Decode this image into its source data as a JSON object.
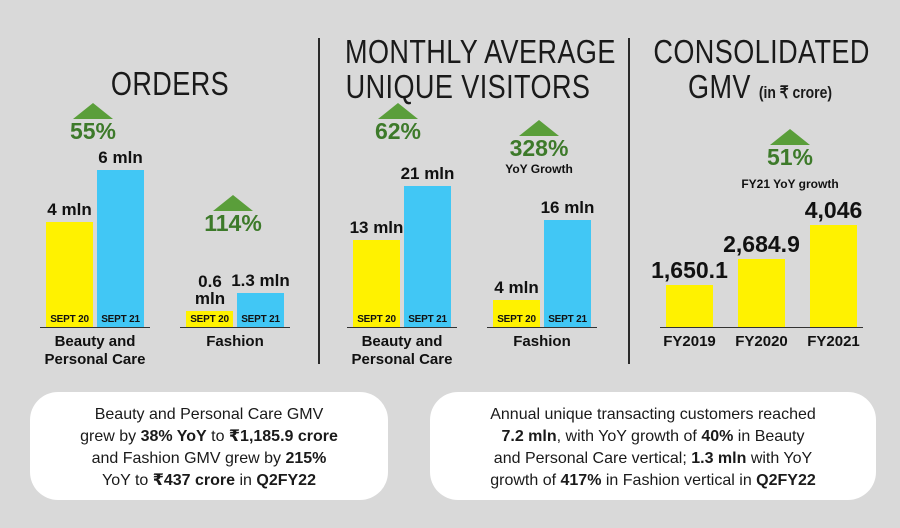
{
  "panels": {
    "orders": {
      "title": "ORDERS"
    },
    "visitors": {
      "title_line1": "MONTHLY AVERAGE",
      "title_line2": "UNIQUE VISITORS"
    },
    "gmv": {
      "title_line1": "CONSOLIDATED",
      "title_line2": "GMV",
      "title_unit": "(in ₹ crore)"
    }
  },
  "chart_data": [
    {
      "type": "bar",
      "title": "ORDERS",
      "groups": [
        {
          "category": "Beauty and Personal Care",
          "growth": "55%",
          "bars": [
            {
              "tag": "SEPT 20",
              "label": "4 mln",
              "value": 4
            },
            {
              "tag": "SEPT 21",
              "label": "6 mln",
              "value": 6
            }
          ]
        },
        {
          "category": "Fashion",
          "growth": "114%",
          "bars": [
            {
              "tag": "SEPT 20",
              "label": "0.6 mln",
              "value": 0.6
            },
            {
              "tag": "SEPT 21",
              "label": "1.3 mln",
              "value": 1.3
            }
          ]
        }
      ]
    },
    {
      "type": "bar",
      "title": "MONTHLY AVERAGE UNIQUE VISITORS",
      "groups": [
        {
          "category": "Beauty and Personal Care",
          "growth": "62%",
          "bars": [
            {
              "tag": "SEPT 20",
              "label": "13 mln",
              "value": 13
            },
            {
              "tag": "SEPT 21",
              "label": "21 mln",
              "value": 21
            }
          ]
        },
        {
          "category": "Fashion",
          "growth": "328%",
          "growth_note": "YoY Growth",
          "bars": [
            {
              "tag": "SEPT 20",
              "label": "4 mln",
              "value": 4
            },
            {
              "tag": "SEPT 21",
              "label": "16 mln",
              "value": 16
            }
          ]
        }
      ]
    },
    {
      "type": "bar",
      "title": "CONSOLIDATED GMV (in ₹ crore)",
      "growth": "51%",
      "growth_note": "FY21 YoY growth",
      "categories": [
        "FY2019",
        "FY2020",
        "FY2021"
      ],
      "labels": [
        "1,650.1",
        "2,684.9",
        "4,046"
      ],
      "values": [
        1650.1,
        2684.9,
        4046
      ]
    }
  ],
  "colors": {
    "sept20": "#fff200",
    "sept21": "#41c7f5",
    "growth_arrow": "#5a9e3a",
    "growth_text": "#3d7a2a",
    "background": "#d9d9d9"
  },
  "notes": {
    "left": {
      "l1": "Beauty and Personal Care GMV",
      "l2a": "grew by ",
      "l2b": "38% YoY",
      "l2c": " to ",
      "l2d": "₹1,185.9 crore",
      "l3a": "and Fashion GMV grew by ",
      "l3b": "215%",
      "l4a": "YoY to ",
      "l4b": "₹437 crore",
      "l4c": " in ",
      "l4d": "Q2FY22"
    },
    "right": {
      "l1": "Annual unique transacting customers reached",
      "l2a": "7.2 mln",
      "l2b": ", with YoY growth of ",
      "l2c": "40%",
      "l2d": " in Beauty",
      "l3a": "and Personal Care vertical; ",
      "l3b": "1.3 mln",
      "l3c": " with YoY",
      "l4a": "growth of ",
      "l4b": "417%",
      "l4c": " in Fashion vertical in ",
      "l4d": "Q2FY22"
    }
  }
}
